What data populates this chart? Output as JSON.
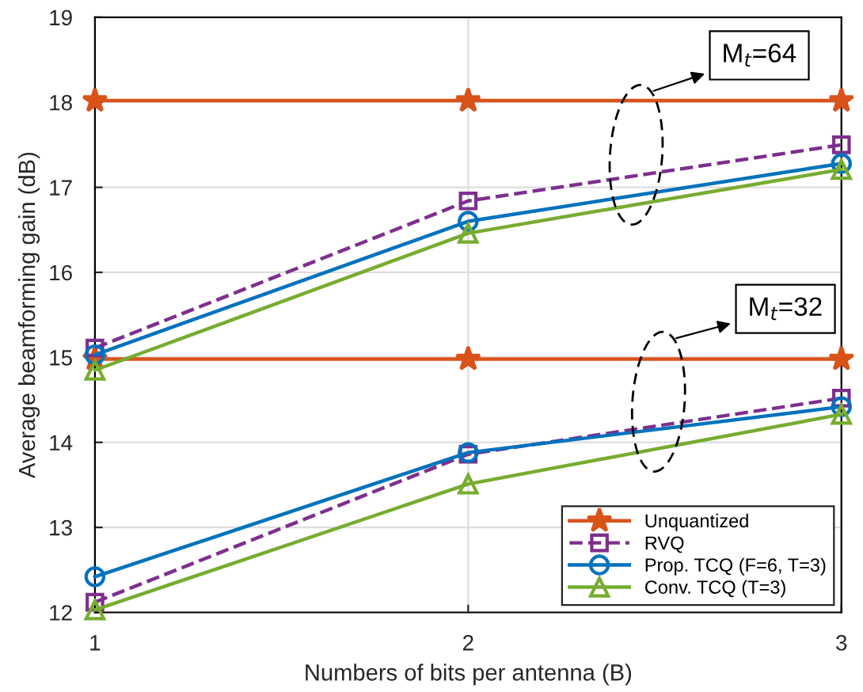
{
  "chart_data": {
    "type": "line",
    "xlabel": "Numbers of bits per antenna (B)",
    "ylabel": "Average beamforming gain (dB)",
    "x": [
      1,
      2,
      3
    ],
    "xlim": [
      1,
      3
    ],
    "xticks": [
      1,
      2,
      3
    ],
    "ylim": [
      12,
      19
    ],
    "yticks": [
      12,
      13,
      14,
      15,
      16,
      17,
      18,
      19
    ],
    "grid": true,
    "legend": "bottom right",
    "series": [
      {
        "name": "Unquantized",
        "color": "#d95319",
        "marker": "star",
        "line_style": "solid",
        "values": [
          18.02,
          18.02,
          18.02
        ]
      },
      {
        "name": "RVQ",
        "color": "#7e2f8e",
        "marker": "square",
        "line_style": "dashed",
        "values": [
          15.11,
          16.84,
          17.5
        ]
      },
      {
        "name": "Prop. TCQ (F=6, T=3)",
        "color": "#0072bd",
        "marker": "circle",
        "line_style": "solid",
        "values": [
          15.03,
          16.6,
          17.28
        ]
      },
      {
        "name": "Conv. TCQ (T=3)",
        "color": "#77ac30",
        "marker": "triangle",
        "line_style": "solid",
        "values": [
          14.85,
          16.46,
          17.21
        ]
      },
      {
        "color": "#d95319",
        "marker": "star",
        "line_style": "solid",
        "values": [
          14.98,
          14.98,
          14.98
        ]
      },
      {
        "color": "#7e2f8e",
        "marker": "square",
        "line_style": "dashed",
        "values": [
          12.12,
          13.86,
          14.52
        ]
      },
      {
        "color": "#0072bd",
        "marker": "circle",
        "line_style": "solid",
        "values": [
          12.42,
          13.88,
          14.42
        ]
      },
      {
        "color": "#77ac30",
        "marker": "triangle",
        "line_style": "solid",
        "values": [
          12.03,
          13.51,
          14.33
        ]
      }
    ],
    "annotations": [
      "M$_{t}$=64",
      "M$_{t}$=32"
    ]
  }
}
